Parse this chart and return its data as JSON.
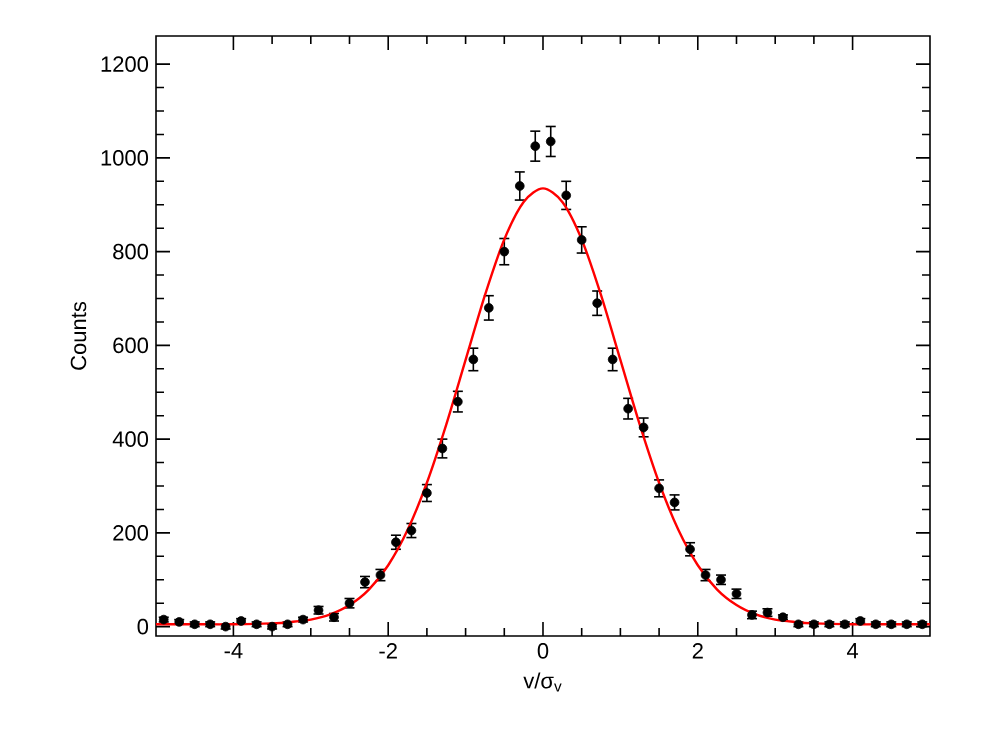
{
  "chart_data": {
    "type": "scatter",
    "xlabel": "v/σ$_{v}$",
    "ylabel": "Counts",
    "xlim": [
      -5,
      5
    ],
    "ylim": [
      -20,
      1260
    ],
    "xticks": [
      -4,
      -2,
      0,
      2,
      4
    ],
    "yticks": [
      0,
      200,
      400,
      600,
      800,
      1000,
      1200
    ],
    "grid": false,
    "series": [
      {
        "color": "#000000",
        "marker": "circle",
        "x": [
          -4.9,
          -4.7,
          -4.5,
          -4.3,
          -4.1,
          -3.9,
          -3.7,
          -3.5,
          -3.3,
          -3.1,
          -2.9,
          -2.7,
          -2.5,
          -2.3,
          -2.1,
          -1.9,
          -1.7,
          -1.5,
          -1.3,
          -1.1,
          -0.9,
          -0.7,
          -0.5,
          -0.3,
          -0.1,
          0.1,
          0.3,
          0.5,
          0.7,
          0.9,
          1.1,
          1.3,
          1.5,
          1.7,
          1.9,
          2.1,
          2.3,
          2.5,
          2.7,
          2.9,
          3.1,
          3.3,
          3.5,
          3.7,
          3.9,
          4.1,
          4.3,
          4.5,
          4.7,
          4.9
        ],
        "values": [
          15,
          10,
          5,
          5,
          0,
          12,
          5,
          0,
          5,
          15,
          35,
          20,
          50,
          95,
          110,
          180,
          205,
          285,
          380,
          480,
          570,
          680,
          800,
          940,
          1025,
          1035,
          920,
          825,
          690,
          570,
          465,
          425,
          295,
          265,
          165,
          110,
          100,
          70,
          25,
          30,
          20,
          5,
          5,
          5,
          5,
          12,
          5,
          5,
          5,
          5
        ],
        "errors": [
          5,
          5,
          5,
          5,
          5,
          5,
          5,
          5,
          5,
          5,
          8,
          8,
          10,
          12,
          12,
          15,
          15,
          18,
          20,
          22,
          24,
          26,
          28,
          30,
          32,
          32,
          30,
          28,
          26,
          24,
          22,
          20,
          18,
          16,
          14,
          12,
          10,
          10,
          8,
          8,
          5,
          5,
          5,
          5,
          5,
          5,
          5,
          5,
          5,
          5
        ]
      },
      {
        "type": "line",
        "color": "#ff0000",
        "marker": "none",
        "line_style": "solid",
        "x": [
          -5,
          -4.5,
          -4,
          -3.5,
          -3.25,
          -3,
          -2.75,
          -2.5,
          -2.25,
          -2,
          -1.75,
          -1.5,
          -1.25,
          -1,
          -0.75,
          -0.5,
          -0.25,
          0,
          0.25,
          0.5,
          0.75,
          1,
          1.25,
          1.5,
          1.75,
          2,
          2.25,
          2.5,
          2.75,
          3,
          3.25,
          3.5,
          4,
          4.5,
          5
        ],
        "values": [
          5,
          5,
          5,
          7,
          10,
          15,
          26,
          46,
          79,
          131,
          206,
          307,
          431,
          569,
          707,
          826,
          906,
          935,
          906,
          826,
          707,
          569,
          431,
          307,
          206,
          131,
          79,
          46,
          26,
          15,
          10,
          7,
          5,
          5,
          5
        ]
      }
    ]
  }
}
